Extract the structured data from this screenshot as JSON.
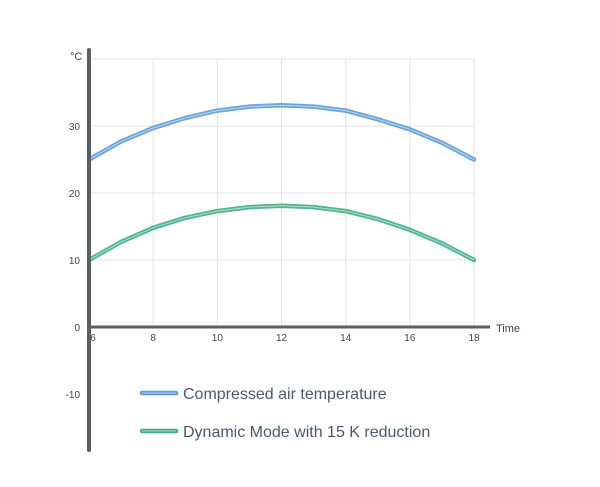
{
  "chart_data": {
    "type": "line",
    "title": "",
    "xlabel": "Time",
    "ylabel": "°C",
    "xlim": [
      6,
      18
    ],
    "ylim": [
      -10,
      40
    ],
    "x_ticks": [
      6,
      8,
      10,
      12,
      14,
      16,
      18
    ],
    "y_ticks": [
      -10,
      0,
      10,
      20,
      30
    ],
    "grid": true,
    "legend_position": "bottom",
    "x": [
      6,
      7,
      8,
      9,
      10,
      11,
      12,
      13,
      14,
      15,
      16,
      17,
      18
    ],
    "series": [
      {
        "name": "Compressed air temperature",
        "color": "#5b9bd5",
        "values": [
          25,
          27.7,
          29.7,
          31.2,
          32.3,
          32.9,
          33.1,
          32.9,
          32.3,
          31.0,
          29.5,
          27.5,
          25
        ]
      },
      {
        "name": "Dynamic Mode with 15 K reduction",
        "color": "#3daf80",
        "values": [
          10,
          12.7,
          14.8,
          16.3,
          17.3,
          17.9,
          18.1,
          17.9,
          17.3,
          16.1,
          14.5,
          12.5,
          10
        ]
      }
    ]
  }
}
